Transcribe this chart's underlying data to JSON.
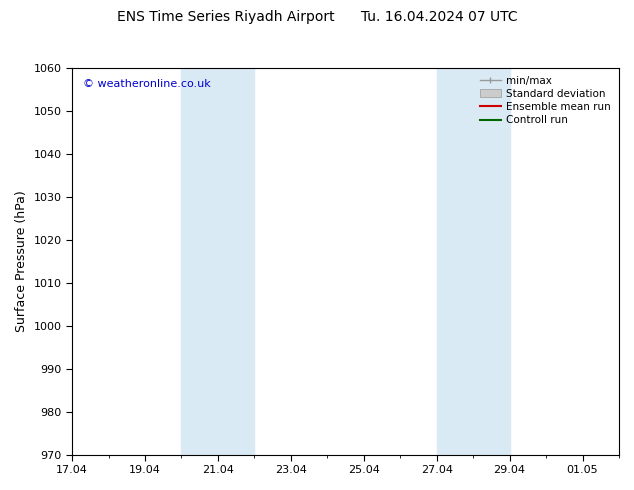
{
  "title": "ENS Time Series Riyadh Airport      Tu. 16.04.2024 07 UTC",
  "ylabel": "Surface Pressure (hPa)",
  "ylim": [
    970,
    1060
  ],
  "yticks": [
    970,
    980,
    990,
    1000,
    1010,
    1020,
    1030,
    1040,
    1050,
    1060
  ],
  "xtick_labels": [
    "17.04",
    "19.04",
    "21.04",
    "23.04",
    "25.04",
    "27.04",
    "29.04",
    "01.05"
  ],
  "xtick_offsets": [
    0,
    2,
    4,
    6,
    8,
    10,
    12,
    14
  ],
  "xlim": [
    0,
    15
  ],
  "band1_x0": 3,
  "band1_x1": 5,
  "band2_x0": 10,
  "band2_x1": 12,
  "band_color": "#daeaf5",
  "copyright_text": "© weatheronline.co.uk",
  "copyright_color": "#0000cc",
  "legend_labels": [
    "min/max",
    "Standard deviation",
    "Ensemble mean run",
    "Controll run"
  ],
  "legend_colors": [
    "#999999",
    "#cccccc",
    "#cc0000",
    "#006600"
  ],
  "bg_color": "#ffffff",
  "title_fontsize": 10,
  "tick_fontsize": 8,
  "ylabel_fontsize": 9
}
